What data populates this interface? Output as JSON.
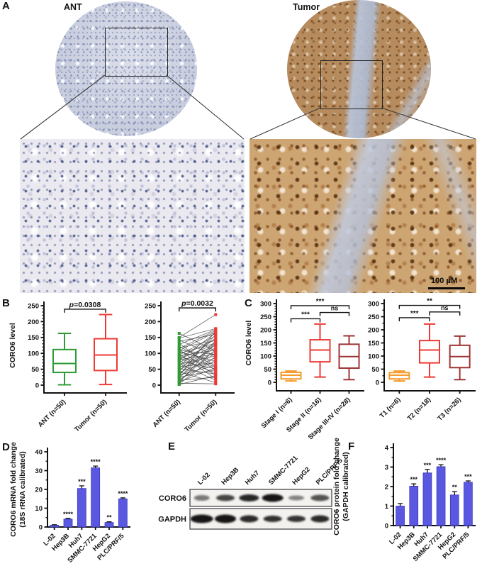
{
  "panelA": {
    "label": "A",
    "ant_title": "ANT",
    "tumor_title": "Tumor",
    "scale_bar_label": "100 μM"
  },
  "panelB": {
    "label": "B"
  },
  "panelC": {
    "label": "C"
  },
  "panelD": {
    "label": "D"
  },
  "panelE": {
    "label": "E",
    "lanes": [
      "L-02",
      "Hep3B",
      "Huh7",
      "SMMC-7721",
      "HepG2",
      "PLC/PRF/5"
    ],
    "rows": [
      {
        "name": "CORO6",
        "intensities": [
          0.55,
          0.78,
          0.92,
          1.0,
          0.5,
          0.72
        ],
        "widths": [
          11,
          13,
          14,
          15,
          11,
          13
        ],
        "heights": [
          8,
          9,
          10,
          11,
          7,
          9
        ]
      },
      {
        "name": "GAPDH",
        "intensities": [
          1.0,
          1.0,
          0.9,
          0.88,
          0.86,
          0.9
        ],
        "widths": [
          16,
          15,
          13,
          13,
          13,
          13
        ],
        "heights": [
          12,
          12,
          10,
          9,
          9,
          10
        ]
      }
    ]
  },
  "panelF": {
    "label": "F"
  },
  "colors": {
    "ant_green": "#2f9b35",
    "tumor_red": "#ee3a35",
    "stage1_orange": "#f59a2b",
    "stage2_red": "#ee3a35",
    "stage3_darkred": "#9e3434",
    "bar_blue": "#5a58e0",
    "pair_line_gray": "#4a4a4a",
    "axis_black": "#111111"
  },
  "chart_data": {
    "b_box": {
      "type": "box",
      "ylabel": "CORO6 level",
      "ylim": [
        0,
        250
      ],
      "yticks": [
        0,
        50,
        100,
        150,
        200,
        250
      ],
      "yminor_step": 10,
      "categories": [
        "ANT (n=50)",
        "Tumor (n=50)"
      ],
      "boxes": [
        {
          "color": "#2f9b35",
          "min": 1,
          "q1": 40,
          "median": 68,
          "q3": 112,
          "max": 163
        },
        {
          "color": "#ee3a35",
          "min": 2,
          "q1": 46,
          "median": 95,
          "q3": 146,
          "max": 222
        }
      ],
      "annotations": [
        {
          "text": "p=0.0308",
          "italic_p": true,
          "from": 0,
          "to": 1,
          "y": 239
        }
      ]
    },
    "b_paired": {
      "type": "paired",
      "ylim": [
        0,
        250
      ],
      "yticks": [
        0,
        50,
        100,
        150,
        200,
        250
      ],
      "categories": [
        "ANT (n=50)",
        "Tumor (n=50)"
      ],
      "colors": [
        "#2f9b35",
        "#ee3a35"
      ],
      "line_color": "#4a4a4a",
      "pairs": [
        [
          163,
          108
        ],
        [
          150,
          222
        ],
        [
          148,
          178
        ],
        [
          142,
          92
        ],
        [
          138,
          160
        ],
        [
          132,
          45
        ],
        [
          128,
          175
        ],
        [
          122,
          60
        ],
        [
          118,
          140
        ],
        [
          115,
          172
        ],
        [
          112,
          30
        ],
        [
          110,
          96
        ],
        [
          108,
          168
        ],
        [
          105,
          75
        ],
        [
          100,
          132
        ],
        [
          98,
          20
        ],
        [
          95,
          155
        ],
        [
          92,
          110
        ],
        [
          90,
          58
        ],
        [
          88,
          145
        ],
        [
          85,
          38
        ],
        [
          82,
          130
        ],
        [
          80,
          98
        ],
        [
          78,
          165
        ],
        [
          75,
          52
        ],
        [
          72,
          125
        ],
        [
          68,
          15
        ],
        [
          65,
          92
        ],
        [
          62,
          148
        ],
        [
          58,
          70
        ],
        [
          55,
          118
        ],
        [
          52,
          35
        ],
        [
          48,
          105
        ],
        [
          45,
          158
        ],
        [
          42,
          8
        ],
        [
          40,
          86
        ],
        [
          36,
          128
        ],
        [
          32,
          62
        ],
        [
          28,
          100
        ],
        [
          25,
          48
        ],
        [
          22,
          140
        ],
        [
          18,
          78
        ],
        [
          15,
          25
        ],
        [
          12,
          112
        ],
        [
          10,
          55
        ],
        [
          8,
          135
        ],
        [
          6,
          4
        ],
        [
          4,
          90
        ],
        [
          2,
          30
        ],
        [
          30,
          170
        ]
      ],
      "annotations": [
        {
          "text": "p=0.0032",
          "italic_p": true,
          "from": 0,
          "to": 1,
          "y": 243
        }
      ]
    },
    "c_stage": {
      "type": "box",
      "ylabel": "CORO6 level",
      "ylim": [
        0,
        300
      ],
      "yticks": [
        0,
        50,
        100,
        150,
        200,
        250,
        300
      ],
      "yminor_step": 10,
      "categories": [
        "Stage I (n=6)",
        "Stage II (n=16)",
        "Stage III-IV (n=28)"
      ],
      "boxes": [
        {
          "color": "#f59a2b",
          "min": 5,
          "q1": 13,
          "median": 27,
          "q3": 38,
          "max": 43
        },
        {
          "color": "#ee3a35",
          "min": 20,
          "q1": 78,
          "median": 123,
          "q3": 162,
          "max": 222
        },
        {
          "color": "#9e3434",
          "min": 10,
          "q1": 54,
          "median": 98,
          "q3": 145,
          "max": 177
        }
      ],
      "annotations": [
        {
          "text": "***",
          "from": 0,
          "to": 1,
          "y": 242
        },
        {
          "text": "ns",
          "from": 1,
          "to": 2,
          "y": 266
        },
        {
          "text": "***",
          "from": 0,
          "to": 2,
          "y": 292
        }
      ]
    },
    "c_t": {
      "type": "box",
      "ylim": [
        0,
        300
      ],
      "yticks": [
        0,
        50,
        100,
        150,
        200,
        250,
        300
      ],
      "yminor_step": 25,
      "categories": [
        "T1 (n=6)",
        "T2 (n=18)",
        "T3 (n=26)"
      ],
      "boxes": [
        {
          "color": "#f59a2b",
          "min": 5,
          "q1": 13,
          "median": 27,
          "q3": 37,
          "max": 43
        },
        {
          "color": "#ee3a35",
          "min": 20,
          "q1": 74,
          "median": 123,
          "q3": 159,
          "max": 222
        },
        {
          "color": "#9e3434",
          "min": 10,
          "q1": 56,
          "median": 98,
          "q3": 141,
          "max": 176
        }
      ],
      "annotations": [
        {
          "text": "***",
          "from": 0,
          "to": 1,
          "y": 246
        },
        {
          "text": "ns",
          "from": 1,
          "to": 2,
          "y": 268
        },
        {
          "text": "**",
          "from": 0,
          "to": 2,
          "y": 293
        }
      ]
    },
    "d_bar": {
      "type": "bar",
      "ylabel_lines": [
        "CORO6 mRNA fold change",
        "(18S rRNA calibrated)"
      ],
      "ylim": [
        0,
        40
      ],
      "yticks": [
        0,
        10,
        20,
        30,
        40
      ],
      "yminor_step": 5,
      "categories": [
        "L-02",
        "Hep3B",
        "Huh7",
        "SMMC-7721",
        "HepG2",
        "PLC/PRF/5"
      ],
      "values": [
        1.0,
        4.2,
        20.5,
        31.5,
        2.4,
        15.0
      ],
      "errors": [
        0.2,
        0.4,
        1.4,
        0.9,
        0.35,
        0.5
      ],
      "stars": [
        "",
        "****",
        "***",
        "****",
        "**",
        "****"
      ],
      "bar_color": "#5a58e0"
    },
    "f_bar": {
      "type": "bar",
      "ylabel_lines": [
        "CORO6 protein fold change",
        "(GAPDH calibrated)"
      ],
      "ylim": [
        0,
        4
      ],
      "yticks": [
        0,
        1,
        2,
        3,
        4
      ],
      "yminor_step": 0.5,
      "categories": [
        "L-02",
        "Hep3B",
        "Huh7",
        "SMMC-7721",
        "HepG2",
        "PLC/PRF/5"
      ],
      "values": [
        1.0,
        2.02,
        2.7,
        3.02,
        1.57,
        2.22
      ],
      "errors": [
        0.13,
        0.12,
        0.18,
        0.1,
        0.17,
        0.07
      ],
      "stars": [
        "",
        "***",
        "***",
        "****",
        "**",
        "***"
      ],
      "bar_color": "#5a58e0"
    }
  }
}
